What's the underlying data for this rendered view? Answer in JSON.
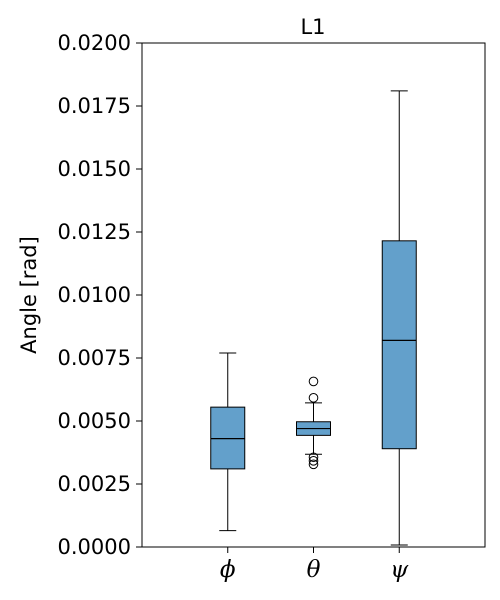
{
  "chart_data": {
    "type": "boxplot",
    "title": "L1",
    "xlabel": "",
    "ylabel": "Angle [rad]",
    "ylim": [
      0,
      0.02
    ],
    "yticks": [
      "0.0000",
      "0.0025",
      "0.0050",
      "0.0075",
      "0.0100",
      "0.0125",
      "0.0150",
      "0.0175",
      "0.0200"
    ],
    "categories": [
      "ϕ",
      "θ",
      "ψ"
    ],
    "box_color": "#63a0cb",
    "grid": false,
    "boxes": [
      {
        "category": "ϕ",
        "whisker_low": 0.00065,
        "q1": 0.0031,
        "median": 0.0043,
        "q3": 0.00555,
        "whisker_high": 0.0077,
        "outliers": []
      },
      {
        "category": "θ",
        "whisker_low": 0.00368,
        "q1": 0.00443,
        "median": 0.0047,
        "q3": 0.00497,
        "whisker_high": 0.00572,
        "outliers": [
          0.00328,
          0.00342,
          0.00356,
          0.00592,
          0.00657
        ]
      },
      {
        "category": "ψ",
        "whisker_low": 8e-05,
        "q1": 0.0039,
        "median": 0.0082,
        "q3": 0.01215,
        "whisker_high": 0.0181,
        "outliers": []
      }
    ]
  }
}
